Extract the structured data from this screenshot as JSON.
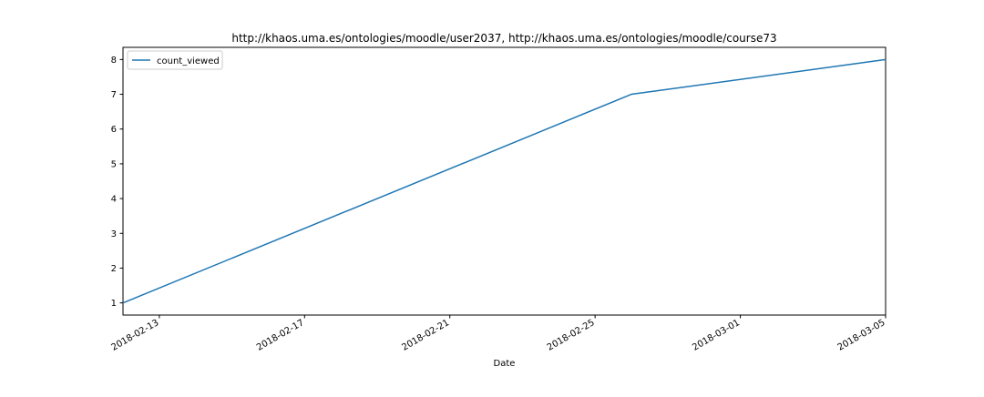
{
  "chart_data": {
    "type": "line",
    "title": "http://khaos.uma.es/ontologies/moodle/user2037, http://khaos.uma.es/ontologies/moodle/course73",
    "xlabel": "Date",
    "ylabel": "",
    "x": [
      "2018-02-12",
      "2018-02-26",
      "2018-03-05"
    ],
    "series": [
      {
        "name": "count_viewed",
        "values": [
          1,
          7,
          8
        ],
        "color": "#1f77b4"
      }
    ],
    "xlim": [
      "2018-02-12",
      "2018-03-05"
    ],
    "ylim": [
      0.65,
      8.35
    ],
    "x_ticks": [
      "2018-02-13",
      "2018-02-17",
      "2018-02-21",
      "2018-02-25",
      "2018-03-01",
      "2018-03-05"
    ],
    "y_ticks": [
      1,
      2,
      3,
      4,
      5,
      6,
      7,
      8
    ],
    "grid": false,
    "legend_position": "top-left"
  }
}
